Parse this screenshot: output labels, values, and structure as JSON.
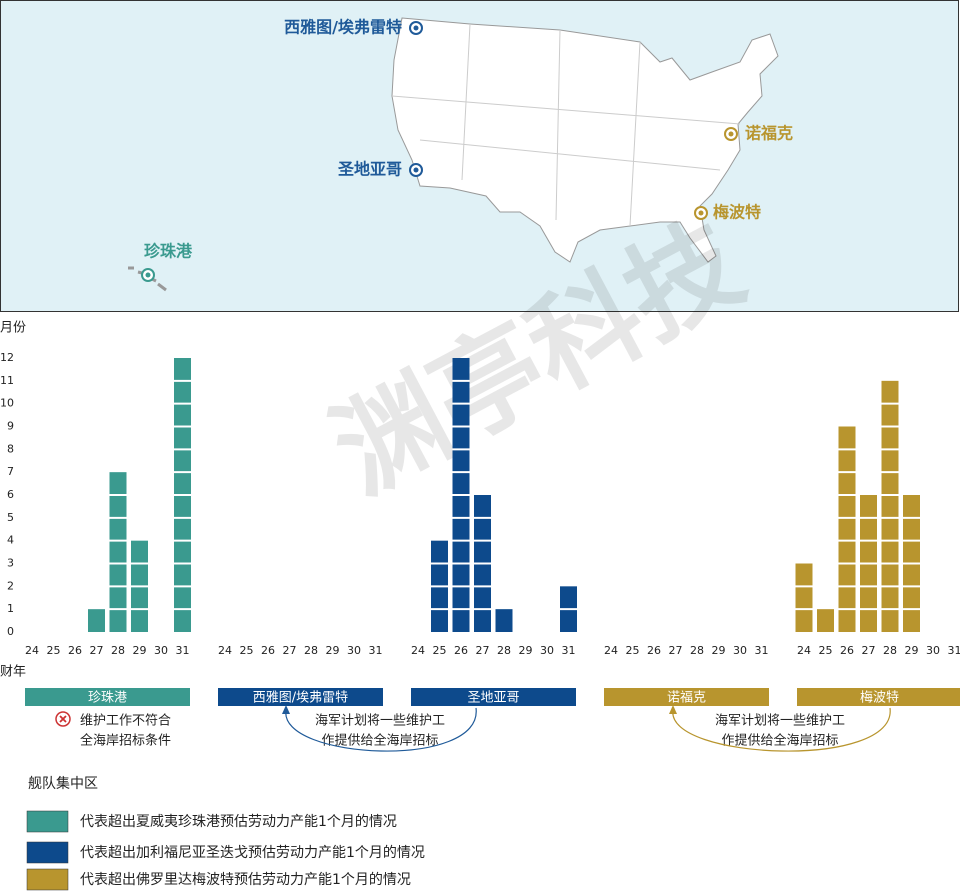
{
  "map": {
    "labels": [
      {
        "name": "西雅图/埃弗雷特",
        "color": "#1f5a99"
      },
      {
        "name": "圣地亚哥",
        "color": "#1f5a99"
      },
      {
        "name": "珍珠港",
        "color": "#3a9a8f"
      },
      {
        "name": "诺福克",
        "color": "#b8952e"
      },
      {
        "name": "梅波特",
        "color": "#b8952e"
      }
    ]
  },
  "watermark": "渊亭科技",
  "chart_data": {
    "type": "bar",
    "y_label": "月份",
    "x_label": "财年",
    "categories": [
      "24",
      "25",
      "26",
      "27",
      "28",
      "29",
      "30",
      "31"
    ],
    "ylim": [
      0,
      12
    ],
    "yticks": [
      0,
      1,
      2,
      3,
      4,
      5,
      6,
      7,
      8,
      9,
      10,
      11,
      12
    ],
    "series": [
      {
        "name": "珍珠港",
        "color": "#3a9a8f",
        "values": [
          0,
          0,
          0,
          1,
          7,
          4,
          0,
          12
        ]
      },
      {
        "name": "西雅图/埃弗雷特",
        "color": "#0d4a8c",
        "values": [
          0,
          0,
          0,
          0,
          0,
          0,
          0,
          0
        ]
      },
      {
        "name": "圣地亚哥",
        "color": "#0d4a8c",
        "values": [
          0,
          4,
          12,
          6,
          1,
          0,
          0,
          2
        ]
      },
      {
        "name": "诺福克",
        "color": "#b8952e",
        "values": [
          0,
          0,
          0,
          0,
          0,
          0,
          0,
          0
        ]
      },
      {
        "name": "梅波特",
        "color": "#b8952e",
        "values": [
          3,
          1,
          9,
          6,
          11,
          6,
          0,
          0
        ]
      }
    ],
    "annotations": [
      {
        "lines": [
          "维护工作不符合",
          "全海岸招标条件"
        ]
      },
      {
        "lines": [
          "海军计划将一些维护工",
          "作提供给全海岸招标"
        ]
      },
      {
        "lines": [
          "海军计划将一些维护工",
          "作提供给全海岸招标"
        ]
      }
    ],
    "legend": {
      "title": "舰队集中区",
      "items": [
        {
          "text": "代表超出夏威夷珍珠港预估劳动力产能1个月的情况",
          "color": "#3a9a8f"
        },
        {
          "text": "代表超出加利福尼亚圣迭戈预估劳动力产能1个月的情况",
          "color": "#0d4a8c"
        },
        {
          "text": "代表超出佛罗里达梅波特预估劳动力产能1个月的情况",
          "color": "#b8952e"
        }
      ]
    }
  }
}
